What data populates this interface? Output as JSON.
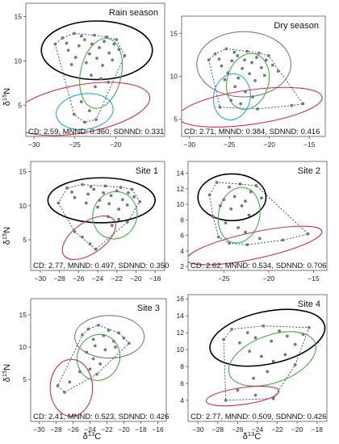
{
  "figure": {
    "ylabel_superscript": "15",
    "ylabel_symbol": "δ",
    "ylabel_element": "N",
    "xlabel_superscript": "13",
    "xlabel_symbol": "δ",
    "xlabel_element": "C"
  },
  "chart_data": [
    {
      "type": "scatter",
      "title": "Rain season",
      "stats": "CD: 2.59, MNND: 0.360, SDNND: 0.331",
      "xlim": [
        -31,
        -14
      ],
      "ylim": [
        1.5,
        16.5
      ],
      "xticks": [
        -30,
        -25,
        -20
      ],
      "yticks": [
        5,
        10,
        15
      ],
      "ellipses": [
        {
          "color": "#000000",
          "cx": -22.3,
          "cy": 11.2,
          "rx": 6.8,
          "ry": 3.3,
          "angle": 0
        },
        {
          "color": "#3cb043",
          "cx": -21.8,
          "cy": 8.6,
          "rx": 2.5,
          "ry": 4.0,
          "angle": 12
        },
        {
          "color": "#2ba6d9",
          "cx": -23.8,
          "cy": 4.3,
          "rx": 3.5,
          "ry": 2.0,
          "angle": -8
        },
        {
          "color": "#c8324f",
          "cx": -24.3,
          "cy": 4.6,
          "rx": 8.6,
          "ry": 2.7,
          "angle": -10
        }
      ],
      "points": [
        [
          -27.4,
          11.9
        ],
        [
          -26.5,
          12.6
        ],
        [
          -25.8,
          11.2
        ],
        [
          -25.1,
          13.1
        ],
        [
          -24.5,
          11.7
        ],
        [
          -23.8,
          12.4
        ],
        [
          -23.2,
          10.8
        ],
        [
          -22.6,
          12.9
        ],
        [
          -22.0,
          11.5
        ],
        [
          -21.4,
          12.2
        ],
        [
          -20.8,
          10.9
        ],
        [
          -20.2,
          11.9
        ],
        [
          -19.6,
          11.3
        ],
        [
          -18.9,
          10.6
        ],
        [
          -24.9,
          10.4
        ],
        [
          -23.6,
          9.8
        ],
        [
          -22.3,
          10.3
        ],
        [
          -21.6,
          9.5
        ],
        [
          -20.4,
          10.1
        ],
        [
          -26.0,
          12.0
        ],
        [
          -24.2,
          12.8
        ],
        [
          -22.9,
          11.9
        ],
        [
          -21.1,
          12.7
        ],
        [
          -19.9,
          12.4
        ],
        [
          -25.4,
          9.6
        ],
        [
          -23.0,
          8.4
        ],
        [
          -21.8,
          8.0
        ],
        [
          -22.5,
          7.1
        ],
        [
          -20.9,
          7.6
        ],
        [
          -24.2,
          5.4
        ],
        [
          -23.2,
          4.4
        ],
        [
          -22.4,
          3.4
        ],
        [
          -25.1,
          4.0
        ],
        [
          -23.8,
          3.1
        ]
      ]
    },
    {
      "type": "scatter",
      "title": "Dry season",
      "stats": "CD: 2.71, MNND: 0.384, SDNND: 0.416",
      "xlim": [
        -31,
        -13
      ],
      "ylim": [
        3.0,
        17.0
      ],
      "xticks": [
        -30,
        -25,
        -20,
        -15
      ],
      "yticks": [
        5,
        10,
        15
      ],
      "ellipses": [
        {
          "color": "#7a7a7a",
          "cx": -23.2,
          "cy": 11.4,
          "rx": 5.9,
          "ry": 3.8,
          "angle": 0
        },
        {
          "color": "#3cb043",
          "cx": -22.7,
          "cy": 9.4,
          "rx": 2.6,
          "ry": 3.3,
          "angle": 15
        },
        {
          "color": "#2ba6d9",
          "cx": -24.7,
          "cy": 7.6,
          "rx": 2.3,
          "ry": 2.7,
          "angle": 10
        },
        {
          "color": "#c8324f",
          "cx": -22.4,
          "cy": 6.4,
          "rx": 9.1,
          "ry": 2.0,
          "angle": -8
        }
      ],
      "points": [
        [
          -27.6,
          11.9
        ],
        [
          -26.8,
          12.6
        ],
        [
          -26.0,
          11.2
        ],
        [
          -25.4,
          13.2
        ],
        [
          -24.7,
          11.8
        ],
        [
          -24.0,
          12.4
        ],
        [
          -23.4,
          10.9
        ],
        [
          -22.8,
          12.9
        ],
        [
          -22.2,
          11.6
        ],
        [
          -21.6,
          12.2
        ],
        [
          -21.0,
          11.0
        ],
        [
          -20.4,
          11.9
        ],
        [
          -19.6,
          11.3
        ],
        [
          -18.9,
          10.6
        ],
        [
          -25.2,
          10.4
        ],
        [
          -23.9,
          9.8
        ],
        [
          -22.5,
          10.3
        ],
        [
          -21.8,
          9.5
        ],
        [
          -20.6,
          10.1
        ],
        [
          -26.3,
          12.0
        ],
        [
          -24.4,
          12.8
        ],
        [
          -23.1,
          11.9
        ],
        [
          -21.3,
          12.7
        ],
        [
          -20.1,
          12.4
        ],
        [
          -25.6,
          9.6
        ],
        [
          -24.3,
          8.8
        ],
        [
          -23.0,
          8.2
        ],
        [
          -22.1,
          7.6
        ],
        [
          -24.8,
          7.2
        ],
        [
          -23.6,
          6.8
        ],
        [
          -26.2,
          6.4
        ],
        [
          -21.5,
          6.2
        ],
        [
          -17.2,
          6.6
        ],
        [
          -15.8,
          6.8
        ]
      ]
    },
    {
      "type": "scatter",
      "title": "Site 1",
      "stats": "CD: 2.77, MNND: 0.497, SDNND: 0.350",
      "xlim": [
        -31,
        -17
      ],
      "ylim": [
        0.5,
        16.5
      ],
      "xticks": [
        -30,
        -28,
        -26,
        -24,
        -22,
        -20,
        -18
      ],
      "yticks": [
        5,
        10,
        15
      ],
      "ellipses": [
        {
          "color": "#000000",
          "cx": -23.6,
          "cy": 10.8,
          "rx": 5.6,
          "ry": 3.3,
          "angle": 0
        },
        {
          "color": "#3cb043",
          "cx": -22.2,
          "cy": 8.6,
          "rx": 2.3,
          "ry": 3.5,
          "angle": 20
        },
        {
          "color": "#c8324f",
          "cx": -24.9,
          "cy": 5.3,
          "rx": 3.2,
          "ry": 2.3,
          "angle": -35
        }
      ],
      "points": [
        [
          -28.1,
          10.4
        ],
        [
          -27.2,
          12.6
        ],
        [
          -26.4,
          11.2
        ],
        [
          -25.6,
          13.1
        ],
        [
          -25.0,
          11.7
        ],
        [
          -24.4,
          12.4
        ],
        [
          -23.8,
          10.8
        ],
        [
          -23.2,
          12.9
        ],
        [
          -22.6,
          11.5
        ],
        [
          -22.0,
          12.2
        ],
        [
          -21.4,
          10.9
        ],
        [
          -20.8,
          11.9
        ],
        [
          -20.2,
          11.3
        ],
        [
          -19.6,
          10.6
        ],
        [
          -25.2,
          10.4
        ],
        [
          -24.0,
          9.8
        ],
        [
          -22.8,
          10.3
        ],
        [
          -21.8,
          9.5
        ],
        [
          -20.9,
          10.1
        ],
        [
          -26.7,
          12.0
        ],
        [
          -24.7,
          12.8
        ],
        [
          -23.4,
          11.9
        ],
        [
          -21.6,
          12.7
        ],
        [
          -20.4,
          12.4
        ],
        [
          -22.9,
          8.4
        ],
        [
          -21.8,
          8.0
        ],
        [
          -22.5,
          7.1
        ],
        [
          -20.9,
          7.6
        ],
        [
          -25.6,
          5.4
        ],
        [
          -24.8,
          4.4
        ],
        [
          -26.4,
          6.2
        ],
        [
          -24.2,
          3.6
        ]
      ]
    },
    {
      "type": "scatter",
      "title": "Site 2",
      "stats": "CD: 2.62, MNND: 0.534, SDNND: 0.706",
      "xlim": [
        -29,
        -13.5
      ],
      "ylim": [
        1.5,
        15.5
      ],
      "xticks": [
        -25,
        -20,
        -15
      ],
      "yticks": [
        2,
        4,
        6,
        8,
        10,
        12,
        14
      ],
      "ellipses": [
        {
          "color": "#000000",
          "cx": -24.1,
          "cy": 10.9,
          "rx": 3.8,
          "ry": 3.0,
          "angle": 0
        },
        {
          "color": "#3cb043",
          "cx": -23.3,
          "cy": 8.6,
          "rx": 2.3,
          "ry": 3.6,
          "angle": 12
        },
        {
          "color": "#c8324f",
          "cx": -21.6,
          "cy": 4.7,
          "rx": 7.7,
          "ry": 1.7,
          "angle": -12
        }
      ],
      "points": [
        [
          -26.6,
          11.2
        ],
        [
          -25.8,
          12.8
        ],
        [
          -25.0,
          10.6
        ],
        [
          -24.4,
          12.2
        ],
        [
          -23.8,
          11.0
        ],
        [
          -23.2,
          12.6
        ],
        [
          -22.6,
          10.4
        ],
        [
          -22.0,
          11.6
        ],
        [
          -21.4,
          12.4
        ],
        [
          -20.8,
          10.8
        ],
        [
          -25.4,
          9.8
        ],
        [
          -24.2,
          9.4
        ],
        [
          -23.0,
          9.8
        ],
        [
          -22.2,
          8.6
        ],
        [
          -26.2,
          8.4
        ],
        [
          -24.8,
          7.6
        ],
        [
          -23.4,
          7.0
        ],
        [
          -22.6,
          6.4
        ],
        [
          -25.6,
          5.8
        ],
        [
          -24.4,
          5.0
        ],
        [
          -22.4,
          4.8
        ],
        [
          -21.0,
          5.6
        ],
        [
          -18.4,
          5.4
        ],
        [
          -15.6,
          6.2
        ]
      ]
    },
    {
      "type": "scatter",
      "title": "Site 3",
      "stats": "CD: 2.41, MNND: 0.523, SDNND: 0.426",
      "xlim": [
        -31,
        -15
      ],
      "ylim": [
        -1.5,
        17.5
      ],
      "xticks": [
        -30,
        -28,
        -26,
        -24,
        -22,
        -20,
        -18,
        -16
      ],
      "yticks": [
        5,
        10,
        15
      ],
      "ellipses": [
        {
          "color": "#7a7a7a",
          "cx": -21.7,
          "cy": 11.6,
          "rx": 4.1,
          "ry": 3.3,
          "angle": 0
        },
        {
          "color": "#3cb043",
          "cx": -23.0,
          "cy": 8.4,
          "rx": 2.5,
          "ry": 3.6,
          "angle": 20
        },
        {
          "color": "#c8324f",
          "cx": -26.2,
          "cy": 3.7,
          "rx": 2.5,
          "ry": 4.4,
          "angle": 0
        }
      ],
      "points": [
        [
          -24.9,
          11.9
        ],
        [
          -24.2,
          12.8
        ],
        [
          -23.6,
          11.2
        ],
        [
          -23.0,
          13.4
        ],
        [
          -22.4,
          11.8
        ],
        [
          -21.8,
          12.6
        ],
        [
          -21.2,
          10.9
        ],
        [
          -20.6,
          12.2
        ],
        [
          -20.0,
          11.4
        ],
        [
          -19.4,
          10.6
        ],
        [
          -23.4,
          10.2
        ],
        [
          -22.2,
          9.6
        ],
        [
          -21.0,
          10.0
        ],
        [
          -24.4,
          9.2
        ],
        [
          -23.6,
          8.2
        ],
        [
          -22.8,
          7.4
        ],
        [
          -24.0,
          6.6
        ],
        [
          -23.2,
          5.8
        ],
        [
          -26.4,
          4.6
        ],
        [
          -27.8,
          4.0
        ],
        [
          -25.2,
          6.2
        ],
        [
          -27.0,
          3.0
        ]
      ]
    },
    {
      "type": "scatter",
      "title": "Site 4",
      "stats": "CD: 2.77, MNND: 0.509, SDNND: 0.426",
      "xlim": [
        -31,
        -17
      ],
      "ylim": [
        1.5,
        16.5
      ],
      "xticks": [
        -30,
        -28,
        -26,
        -24,
        -22,
        -20,
        -18
      ],
      "yticks": [
        4,
        6,
        8,
        10,
        12,
        14,
        16
      ],
      "ellipses": [
        {
          "color": "#000000",
          "cx": -23.0,
          "cy": 11.4,
          "rx": 5.9,
          "ry": 3.1,
          "angle": -12
        },
        {
          "color": "#3cb043",
          "cx": -22.5,
          "cy": 8.9,
          "rx": 4.6,
          "ry": 2.8,
          "angle": -20
        },
        {
          "color": "#c8324f",
          "cx": -25.5,
          "cy": 4.5,
          "rx": 3.7,
          "ry": 1.0,
          "angle": -8
        }
      ],
      "points": [
        [
          -27.4,
          11.2
        ],
        [
          -26.6,
          12.4
        ],
        [
          -25.8,
          10.8
        ],
        [
          -25.0,
          12.0
        ],
        [
          -24.2,
          11.4
        ],
        [
          -23.4,
          12.8
        ],
        [
          -22.6,
          11.0
        ],
        [
          -21.8,
          12.2
        ],
        [
          -21.0,
          11.6
        ],
        [
          -20.2,
          10.6
        ],
        [
          -19.4,
          11.8
        ],
        [
          -18.8,
          12.6
        ],
        [
          -24.8,
          9.8
        ],
        [
          -23.6,
          9.2
        ],
        [
          -22.4,
          8.6
        ],
        [
          -21.2,
          9.4
        ],
        [
          -20.2,
          8.2
        ],
        [
          -23.0,
          7.4
        ],
        [
          -24.4,
          6.6
        ],
        [
          -26.0,
          5.2
        ],
        [
          -24.2,
          4.6
        ],
        [
          -22.4,
          4.2
        ],
        [
          -27.2,
          4.0
        ]
      ]
    }
  ]
}
